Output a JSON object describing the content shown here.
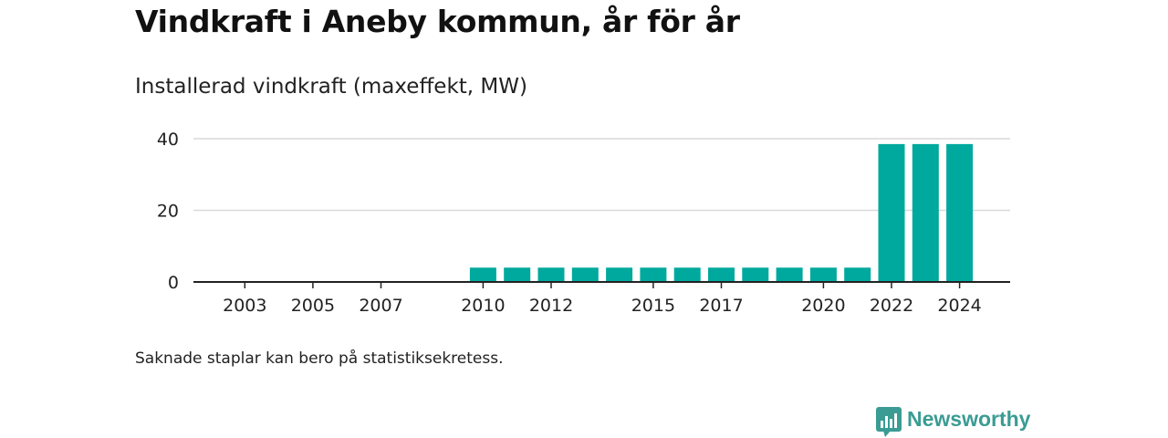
{
  "header": {
    "title": "Vindkraft i Aneby kommun, år för år",
    "subtitle": "Installerad vindkraft (maxeffekt, MW)"
  },
  "footnote": "Saknade staplar kan bero på statistiksekretess.",
  "brand": {
    "name": "Newsworthy",
    "icon": "newsworthy-logo-icon",
    "color": "#3a9c93"
  },
  "chart_data": {
    "type": "bar",
    "title": "",
    "xlabel": "",
    "ylabel": "",
    "ylim": [
      0,
      40
    ],
    "yticks": [
      0,
      20,
      40
    ],
    "grid": true,
    "bar_color": "#00a99d",
    "x_tick_labels": [
      "2003",
      "2005",
      "2007",
      "2010",
      "2012",
      "2015",
      "2017",
      "2020",
      "2022",
      "2024"
    ],
    "categories": [
      "2002",
      "2003",
      "2004",
      "2005",
      "2006",
      "2007",
      "2008",
      "2009",
      "2010",
      "2011",
      "2012",
      "2013",
      "2014",
      "2015",
      "2016",
      "2017",
      "2018",
      "2019",
      "2020",
      "2021",
      "2022",
      "2023",
      "2024"
    ],
    "values": [
      null,
      null,
      null,
      null,
      null,
      null,
      null,
      null,
      4,
      4,
      4,
      4,
      4,
      4,
      4,
      4,
      4,
      4,
      4,
      4,
      38.5,
      38.5,
      38.5
    ]
  }
}
